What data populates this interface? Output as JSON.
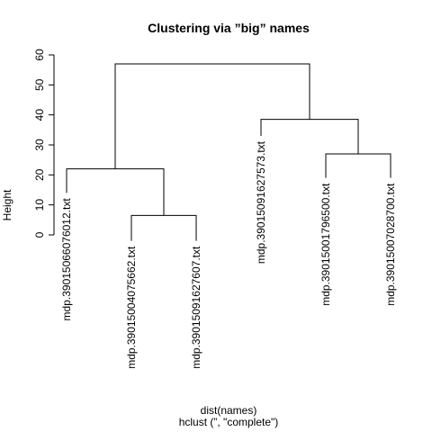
{
  "chart_data": {
    "type": "dendrogram",
    "title": "Clustering via ”big” names",
    "ylabel": "Height",
    "xlabel": "dist(names)",
    "sub": "hclust (”, \"complete\")",
    "ylim": [
      0,
      60
    ],
    "yticks": [
      0,
      10,
      20,
      30,
      40,
      50,
      60
    ],
    "leaves": [
      {
        "label": "mdp.39015066076012.txt",
        "height": 14
      },
      {
        "label": "mdp.39015004075662.txt",
        "height": -2
      },
      {
        "label": "mdp.39015091627607.txt",
        "height": -2
      },
      {
        "label": "mdp.39015091627573.txt",
        "height": 33
      },
      {
        "label": "mdp.39015001796500.txt",
        "height": 19
      },
      {
        "label": "mdp.39015007028700.txt",
        "height": 19
      }
    ],
    "merges": [
      {
        "left": {
          "leaf": 1
        },
        "right": {
          "leaf": 2
        },
        "height": 6.5
      },
      {
        "left": {
          "leaf": 0
        },
        "right": {
          "node": 0
        },
        "height": 22
      },
      {
        "left": {
          "leaf": 4
        },
        "right": {
          "leaf": 5
        },
        "height": 27
      },
      {
        "left": {
          "leaf": 3
        },
        "right": {
          "node": 2
        },
        "height": 38.5
      },
      {
        "left": {
          "node": 1
        },
        "right": {
          "node": 3
        },
        "height": 57
      }
    ]
  }
}
